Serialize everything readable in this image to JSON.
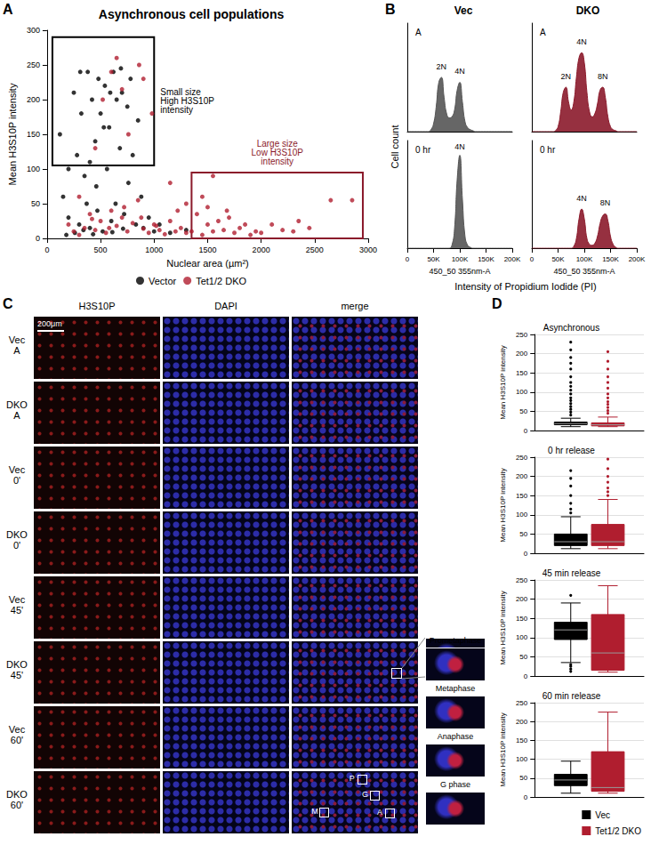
{
  "chart_data": [
    {
      "type": "scatter",
      "title": "Asynchronous cell populations",
      "xlabel": "Nuclear area (µm²)",
      "ylabel": "Mean H3S10P intensity",
      "xlim": [
        0,
        3000
      ],
      "xticks": [
        0,
        500,
        1000,
        1500,
        2000,
        2500,
        3000
      ],
      "ylim": [
        0,
        300
      ],
      "yticks": [
        0,
        50,
        100,
        150,
        200,
        250,
        300
      ],
      "grid": false,
      "legend": "bottom",
      "marker": "circle",
      "series": [
        {
          "name": "Vector",
          "color": "#000000",
          "x": [
            120,
            150,
            200,
            250,
            280,
            300,
            320,
            350,
            380,
            400,
            420,
            450,
            470,
            480,
            500,
            520,
            540,
            560,
            580,
            600,
            620,
            650,
            680,
            700,
            720,
            750,
            780,
            800,
            830,
            850,
            880,
            900,
            950,
            1000,
            180,
            260,
            340,
            430,
            610,
            710,
            370,
            460,
            530,
            640,
            760,
            310,
            590,
            690,
            400,
            200,
            1050,
            1150,
            1300
          ],
          "values": [
            150,
            60,
            30,
            210,
            120,
            20,
            180,
            90,
            240,
            15,
            200,
            140,
            40,
            230,
            180,
            10,
            220,
            100,
            160,
            25,
            240,
            200,
            130,
            210,
            35,
            190,
            230,
            120,
            20,
            170,
            60,
            15,
            30,
            10,
            5,
            8,
            12,
            6,
            9,
            14,
            50,
            75,
            160,
            50,
            80,
            240,
            210,
            245,
            110,
            100,
            20,
            8,
            12
          ]
        },
        {
          "name": "Tet1/2 DKO",
          "color": "#b01e2f",
          "x": [
            200,
            250,
            300,
            350,
            400,
            450,
            500,
            550,
            600,
            650,
            700,
            750,
            800,
            850,
            900,
            950,
            1000,
            1050,
            1100,
            1150,
            1200,
            1250,
            1300,
            1350,
            1400,
            1450,
            1500,
            1550,
            1600,
            1650,
            1700,
            1750,
            1800,
            1850,
            1900,
            1950,
            2000,
            2100,
            2200,
            2300,
            2450,
            2650,
            2850,
            520,
            600,
            700,
            860,
            900,
            650,
            1150,
            1300,
            1500,
            1550,
            980,
            760,
            450,
            2350,
            1680,
            1450,
            300,
            420,
            580,
            720,
            880,
            1020,
            1220
          ],
          "values": [
            20,
            10,
            60,
            15,
            35,
            12,
            25,
            8,
            40,
            18,
            30,
            10,
            22,
            55,
            14,
            8,
            20,
            12,
            6,
            25,
            10,
            15,
            8,
            10,
            35,
            5,
            20,
            10,
            25,
            12,
            30,
            8,
            15,
            20,
            5,
            10,
            8,
            20,
            12,
            10,
            15,
            55,
            55,
            200,
            240,
            215,
            250,
            230,
            260,
            80,
            50,
            45,
            90,
            180,
            150,
            130,
            25,
            40,
            60,
            5,
            28,
            15,
            45,
            30,
            18,
            40
          ]
        }
      ],
      "regions": [
        {
          "text": "Small size\nHigh H3S10P\nintensity",
          "x": [
            50,
            1000
          ],
          "y": [
            105,
            290
          ],
          "color": "#000000"
        },
        {
          "text": "Large size\nLow H3S10P\nintensity",
          "x": [
            1350,
            2950
          ],
          "y": [
            0,
            95
          ],
          "color": "#8b1a2b"
        }
      ]
    },
    {
      "type": "area",
      "title": "A",
      "xlim": [
        0,
        200000
      ],
      "ylim": [
        0,
        110
      ],
      "tick_labels": false,
      "annotations": [
        {
          "text": "2N",
          "x": 65000,
          "y": 62
        },
        {
          "text": "4N",
          "x": 100000,
          "y": 57
        }
      ],
      "series": [
        {
          "name": "Vec",
          "color": "#555555",
          "x": [
            0,
            5000,
            10000,
            15000,
            20000,
            25000,
            30000,
            35000,
            40000,
            45000,
            50000,
            55000,
            60000,
            65000,
            70000,
            75000,
            80000,
            85000,
            90000,
            95000,
            100000,
            105000,
            110000,
            115000,
            120000,
            125000,
            130000,
            135000,
            140000,
            145000,
            150000,
            155000,
            160000,
            165000,
            170000,
            175000,
            180000,
            185000,
            190000,
            195000,
            200000
          ],
          "values": [
            0,
            0,
            0,
            0,
            0,
            0,
            0,
            0,
            0,
            2,
            8,
            25,
            50,
            55,
            35,
            18,
            14,
            15,
            22,
            42,
            50,
            30,
            10,
            4,
            2,
            1,
            0,
            0,
            0,
            0,
            0,
            0,
            0,
            0,
            0,
            0,
            0,
            0,
            0,
            0,
            0
          ]
        }
      ]
    },
    {
      "type": "area",
      "title": "A",
      "xlim": [
        0,
        200000
      ],
      "ylim": [
        0,
        110
      ],
      "tick_labels": false,
      "annotations": [
        {
          "text": "2N",
          "x": 65000,
          "y": 52
        },
        {
          "text": "4N",
          "x": 95000,
          "y": 87
        },
        {
          "text": "8N",
          "x": 135000,
          "y": 52
        }
      ],
      "series": [
        {
          "name": "DKO",
          "color": "#8b1a2b",
          "x": [
            0,
            5000,
            10000,
            15000,
            20000,
            25000,
            30000,
            35000,
            40000,
            45000,
            50000,
            55000,
            60000,
            65000,
            70000,
            75000,
            80000,
            85000,
            90000,
            95000,
            100000,
            105000,
            110000,
            115000,
            120000,
            125000,
            130000,
            135000,
            140000,
            145000,
            150000,
            155000,
            160000,
            165000,
            170000,
            175000,
            180000,
            185000,
            190000,
            195000,
            200000
          ],
          "values": [
            0,
            0,
            0,
            0,
            0,
            0,
            0,
            0,
            0,
            1,
            5,
            20,
            40,
            45,
            30,
            22,
            30,
            55,
            75,
            80,
            70,
            40,
            20,
            15,
            18,
            28,
            42,
            45,
            35,
            15,
            5,
            2,
            1,
            0,
            0,
            0,
            0,
            0,
            0,
            0,
            0
          ]
        }
      ]
    },
    {
      "type": "area",
      "title": "0 hr",
      "xlabel": "450_50 355nm-A",
      "xlim": [
        0,
        200000
      ],
      "xticks": [
        0,
        {
          "value": 50000,
          "label": "50K"
        },
        {
          "value": 100000,
          "label": "100K"
        },
        {
          "value": 150000,
          "label": "150K"
        },
        {
          "value": 200000,
          "label": "200K"
        }
      ],
      "ylim": [
        0,
        110
      ],
      "tick_labels": "x",
      "annotations": [
        {
          "text": "4N",
          "x": 100000,
          "y": 100
        }
      ],
      "series": [
        {
          "name": "Vec",
          "color": "#555555",
          "x": [
            0,
            5000,
            10000,
            15000,
            20000,
            25000,
            30000,
            35000,
            40000,
            45000,
            50000,
            55000,
            60000,
            65000,
            70000,
            75000,
            80000,
            85000,
            90000,
            95000,
            100000,
            105000,
            110000,
            115000,
            120000,
            125000,
            130000,
            135000,
            140000,
            145000,
            150000,
            155000,
            160000,
            165000,
            170000,
            175000,
            180000,
            185000,
            190000,
            195000,
            200000
          ],
          "values": [
            0,
            0,
            0,
            0,
            0,
            0,
            0,
            0,
            0,
            0,
            0,
            0,
            0,
            0,
            0,
            0,
            0,
            3,
            20,
            70,
            95,
            50,
            12,
            3,
            1,
            0,
            0,
            0,
            0,
            0,
            0,
            0,
            0,
            0,
            0,
            0,
            0,
            0,
            0,
            0,
            0
          ]
        }
      ]
    },
    {
      "type": "area",
      "title": "0 hr",
      "xlabel": "450_50 355nm-A",
      "xlim": [
        0,
        200000
      ],
      "xticks": [
        0,
        {
          "value": 50000,
          "label": "50K"
        },
        {
          "value": 100000,
          "label": "100K"
        },
        {
          "value": 150000,
          "label": "150K"
        },
        {
          "value": 200000,
          "label": "200K"
        }
      ],
      "ylim": [
        0,
        110
      ],
      "tick_labels": "x",
      "annotations": [
        {
          "text": "4N",
          "x": 95000,
          "y": 47
        },
        {
          "text": "8N",
          "x": 140000,
          "y": 42
        }
      ],
      "series": [
        {
          "name": "DKO",
          "color": "#8b1a2b",
          "x": [
            0,
            5000,
            10000,
            15000,
            20000,
            25000,
            30000,
            35000,
            40000,
            45000,
            50000,
            55000,
            60000,
            65000,
            70000,
            75000,
            80000,
            85000,
            90000,
            95000,
            100000,
            105000,
            110000,
            115000,
            120000,
            125000,
            130000,
            135000,
            140000,
            145000,
            150000,
            155000,
            160000,
            165000,
            170000,
            175000,
            180000,
            185000,
            190000,
            195000,
            200000
          ],
          "values": [
            0,
            0,
            0,
            0,
            0,
            0,
            0,
            0,
            0,
            0,
            0,
            0,
            0,
            0,
            0,
            0,
            2,
            10,
            30,
            40,
            30,
            10,
            4,
            3,
            5,
            12,
            25,
            33,
            35,
            28,
            12,
            4,
            1,
            0,
            0,
            0,
            0,
            0,
            0,
            0,
            0
          ]
        }
      ]
    },
    {
      "type": "box",
      "title": "Asynchronous",
      "ylabel": "Mean H3S10P intensity",
      "categories": [
        null
      ],
      "ylim": [
        0,
        250
      ],
      "yticks": [
        0,
        50,
        100,
        150,
        200,
        250
      ],
      "grid": true,
      "series": [
        {
          "name": "Vec",
          "color": "#000000",
          "whisker_low": 10,
          "q1": 15,
          "median": 18,
          "q3": 22,
          "whisker_high": 32,
          "outliers": [
            40,
            48,
            55,
            62,
            70,
            78,
            85,
            95,
            105,
            115,
            125,
            140,
            160,
            175,
            190,
            210,
            230
          ]
        },
        {
          "name": "Tet1/2 DKO",
          "color": "#b01e2f",
          "whisker_low": 10,
          "q1": 12,
          "median": 15,
          "q3": 20,
          "whisker_high": 35,
          "outliers": [
            45,
            52,
            60,
            68,
            75,
            85,
            95,
            110,
            125,
            140,
            160,
            180,
            205
          ]
        }
      ]
    },
    {
      "type": "box",
      "title": "0 hr release",
      "ylabel": "Mean H3S10P intensity",
      "categories": [
        null
      ],
      "ylim": [
        0,
        250
      ],
      "yticks": [
        0,
        50,
        100,
        150,
        200,
        250
      ],
      "grid": true,
      "series": [
        {
          "name": "Vec",
          "color": "#000000",
          "whisker_low": 12,
          "q1": 20,
          "median": 30,
          "q3": 50,
          "whisker_high": 95,
          "outliers": [
            105,
            115,
            130,
            150,
            175,
            195,
            215
          ]
        },
        {
          "name": "Tet1/2 DKO",
          "color": "#b01e2f",
          "whisker_low": 12,
          "q1": 20,
          "median": 30,
          "q3": 75,
          "whisker_high": 140,
          "outliers": [
            150,
            160,
            170,
            185,
            200,
            220,
            245
          ]
        }
      ]
    },
    {
      "type": "box",
      "title": "45 min release",
      "ylabel": "Mean H3S10P intensity",
      "categories": [
        null
      ],
      "ylim": [
        0,
        250
      ],
      "yticks": [
        0,
        50,
        100,
        150,
        200,
        250
      ],
      "grid": true,
      "series": [
        {
          "name": "Vec",
          "color": "#000000",
          "whisker_low": 35,
          "q1": 95,
          "median": 120,
          "q3": 140,
          "whisker_high": 190,
          "outliers": [
            12,
            18,
            25,
            30,
            210
          ]
        },
        {
          "name": "Tet1/2 DKO",
          "color": "#b01e2f",
          "whisker_low": 10,
          "q1": 15,
          "median": 60,
          "q3": 160,
          "whisker_high": 235,
          "outliers": []
        }
      ]
    },
    {
      "type": "box",
      "title": "60 min release",
      "ylabel": "Mean H3S10P intensity",
      "categories": [
        null
      ],
      "ylim": [
        0,
        250
      ],
      "yticks": [
        0,
        50,
        100,
        150,
        200,
        250
      ],
      "grid": true,
      "legend": "bottom",
      "series": [
        {
          "name": "Vec",
          "color": "#000000",
          "whisker_low": 10,
          "q1": 30,
          "median": 45,
          "q3": 60,
          "whisker_high": 95,
          "outliers": []
        },
        {
          "name": "Tet1/2 DKO",
          "color": "#b01e2f",
          "whisker_low": 10,
          "q1": 15,
          "median": 25,
          "q3": 120,
          "whisker_high": 225,
          "outliers": []
        }
      ]
    }
  ],
  "figure": {
    "panel_letters": [
      "A",
      "B",
      "C",
      "D"
    ],
    "panel_b": {
      "columns": [
        "Vec",
        "DKO"
      ],
      "ylabel": "Cell count",
      "xlabel": "Intensity of Propidium Iodide (PI)"
    },
    "panel_c": {
      "columns": [
        "H3S10P",
        "DAPI",
        "merge"
      ],
      "rows": [
        [
          "Vec",
          "A"
        ],
        [
          "DKO",
          "A"
        ],
        [
          "Vec",
          "0'"
        ],
        [
          "DKO",
          "0'"
        ],
        [
          "Vec",
          "45'"
        ],
        [
          "DKO",
          "45'"
        ],
        [
          "Vec",
          "60'"
        ],
        [
          "DKO",
          "60'"
        ]
      ],
      "scale_bar": "200μm",
      "insets": [
        "Prometaphase",
        "Metaphase",
        "Anaphase",
        "G phase"
      ],
      "markers": [
        "P",
        "G",
        "A",
        "M"
      ]
    }
  }
}
